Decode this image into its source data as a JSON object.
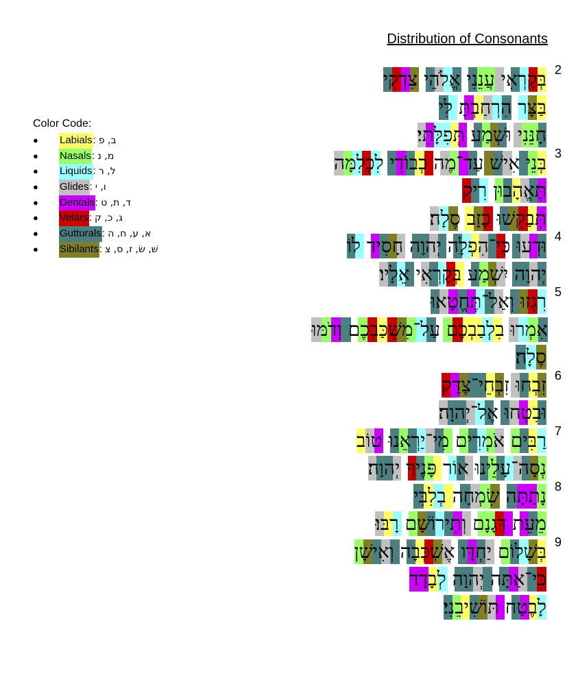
{
  "title": "Distribution of Consonants",
  "legend": {
    "title": "Color Code:",
    "items": [
      {
        "name": "Labials",
        "letters": "ב, פ",
        "color": "#ffff66"
      },
      {
        "name": "Nasals",
        "letters": "מ, נ",
        "color": "#99ff66"
      },
      {
        "name": "Liquids",
        "letters": "ל, ר",
        "color": "#99ffff"
      },
      {
        "name": "Glides",
        "letters": "ו, י",
        "color": "#c0c0c0"
      },
      {
        "name": "Dentals",
        "letters": "ד, ת, ט",
        "color": "#cc00ff"
      },
      {
        "name": "Velars",
        "letters": "ג, כ, ק",
        "color": "#cc0000"
      },
      {
        "name": "Gutturals",
        "letters": "א, ע, ח, ה",
        "color": "#4c7f7f"
      },
      {
        "name": "Sibilants",
        "letters": "שׁ, שׂ, ז, ס, צ",
        "color": "#7f7f26"
      }
    ]
  },
  "lines": [
    {
      "verse": "2",
      "text": "בְּקָרְאִי עֲנֵנִי אֱלֹהֵי צִדְקִי",
      "codes": "L V Q G | G N N G | G Q G G | S D V G"
    },
    {
      "verse": "",
      "text": "בַּצָּר הִרְחַבְתָּ לִּי",
      "codes": "L S Q | G Q G L D | Q G"
    },
    {
      "verse": "",
      "text": "חָנֵּנִי וּשְׁמַע תְּפִלָּתִי׃",
      "codes": "G N N G | G S N G | D L Q Q D G"
    },
    {
      "verse": "3",
      "text": "בְּנֵי אִישׁ עַד־מֶה כְבוֹדִי לִכְלִמָּה",
      "codes": "L N G | G G S | G D N G | V L G D G | Q V Q N G"
    },
    {
      "verse": "",
      "text": "תֶּאֱהָבוּן רִיק",
      "codes": "D G G L G N | Q G V"
    },
    {
      "verse": "",
      "text": "תְּבַקְשׁוּ כָזָב סֶלָה׃",
      "codes": "D L V S G | V S L | S Q G"
    },
    {
      "verse": "4",
      "text": "וּדְעוּ כִּי־הִפְלָה יְהוָה חָסִיד לוֹ",
      "codes": "G D G G | V G G L Q G | G G G G | G S G D | Q G"
    },
    {
      "verse": "",
      "text": "יְהוָה יִשְׁמַע בְּקָרְאִי אֵלָיו׃",
      "codes": "G G G G | G S N G | L V Q G G | G Q G G"
    },
    {
      "verse": "5",
      "text": "רִגְזוּ וְאַל־תֶּחֱטָאוּ",
      "codes": "Q V S G | G G Q D G D G G"
    },
    {
      "verse": "",
      "text": "אִמְרוּ בִלְבַבְכֶם עַל־מִשְׁכַּבְכֶם וְדֹמּוּ",
      "codes": "G N Q G | L Q L L V N | G Q N S V L V N | G D N G",
      "full": true
    },
    {
      "verse": "",
      "text": "סֶלָה׃",
      "codes": "S Q G"
    },
    {
      "verse": "6",
      "text": "זִבְחוּ זִבְחֵי־צֶדֶק",
      "codes": "S L G G | S L G G S D V"
    },
    {
      "verse": "",
      "text": "וּבִטְחוּ אֶל־יְהוָה׃",
      "codes": "G L D G G | G Q G G G G"
    },
    {
      "verse": "7",
      "text": "רַבִּים אֹמְרִים מִי־יַרְאֵנוּ טוֹב",
      "codes": "Q L G N | G N Q G N | N G G Q G N G | D G L"
    },
    {
      "verse": "",
      "text": "נְסָה־עָלֵינוּ אוֹר פָּנֶיךָ יְהוָה׃",
      "codes": "N S G G Q G N G | G G Q | L N G V | G G G G"
    },
    {
      "verse": "8",
      "text": "נָתַתָּה שִׂמְחָה בְלִבִּי",
      "codes": "N D D G | S N G G | L Q L G"
    },
    {
      "verse": "",
      "text": "מֵעֵת דְּגָנָם וְתִירוֹשָׁם רָבּוּ׃",
      "codes": "N G D | D V N N | G D G Q G S N | Q L G"
    },
    {
      "verse": "9",
      "text": "בְּשָׁלוֹם יַחְדָּו אֶשְׁכְּבָה וְאִישָׁן",
      "codes": "L S Q G N | G G D G | G S V L G | G G G S N"
    },
    {
      "verse": "",
      "text": "כִּי־אַתָּה יְהוָה לְבָדָד",
      "codes": "V G G D G | G G G G | Q L D D"
    },
    {
      "verse": "",
      "text": "לָבֶטַח תּוֹשִׁיבֵנִי׃",
      "codes": "Q L D G | D G S G L N G"
    }
  ]
}
